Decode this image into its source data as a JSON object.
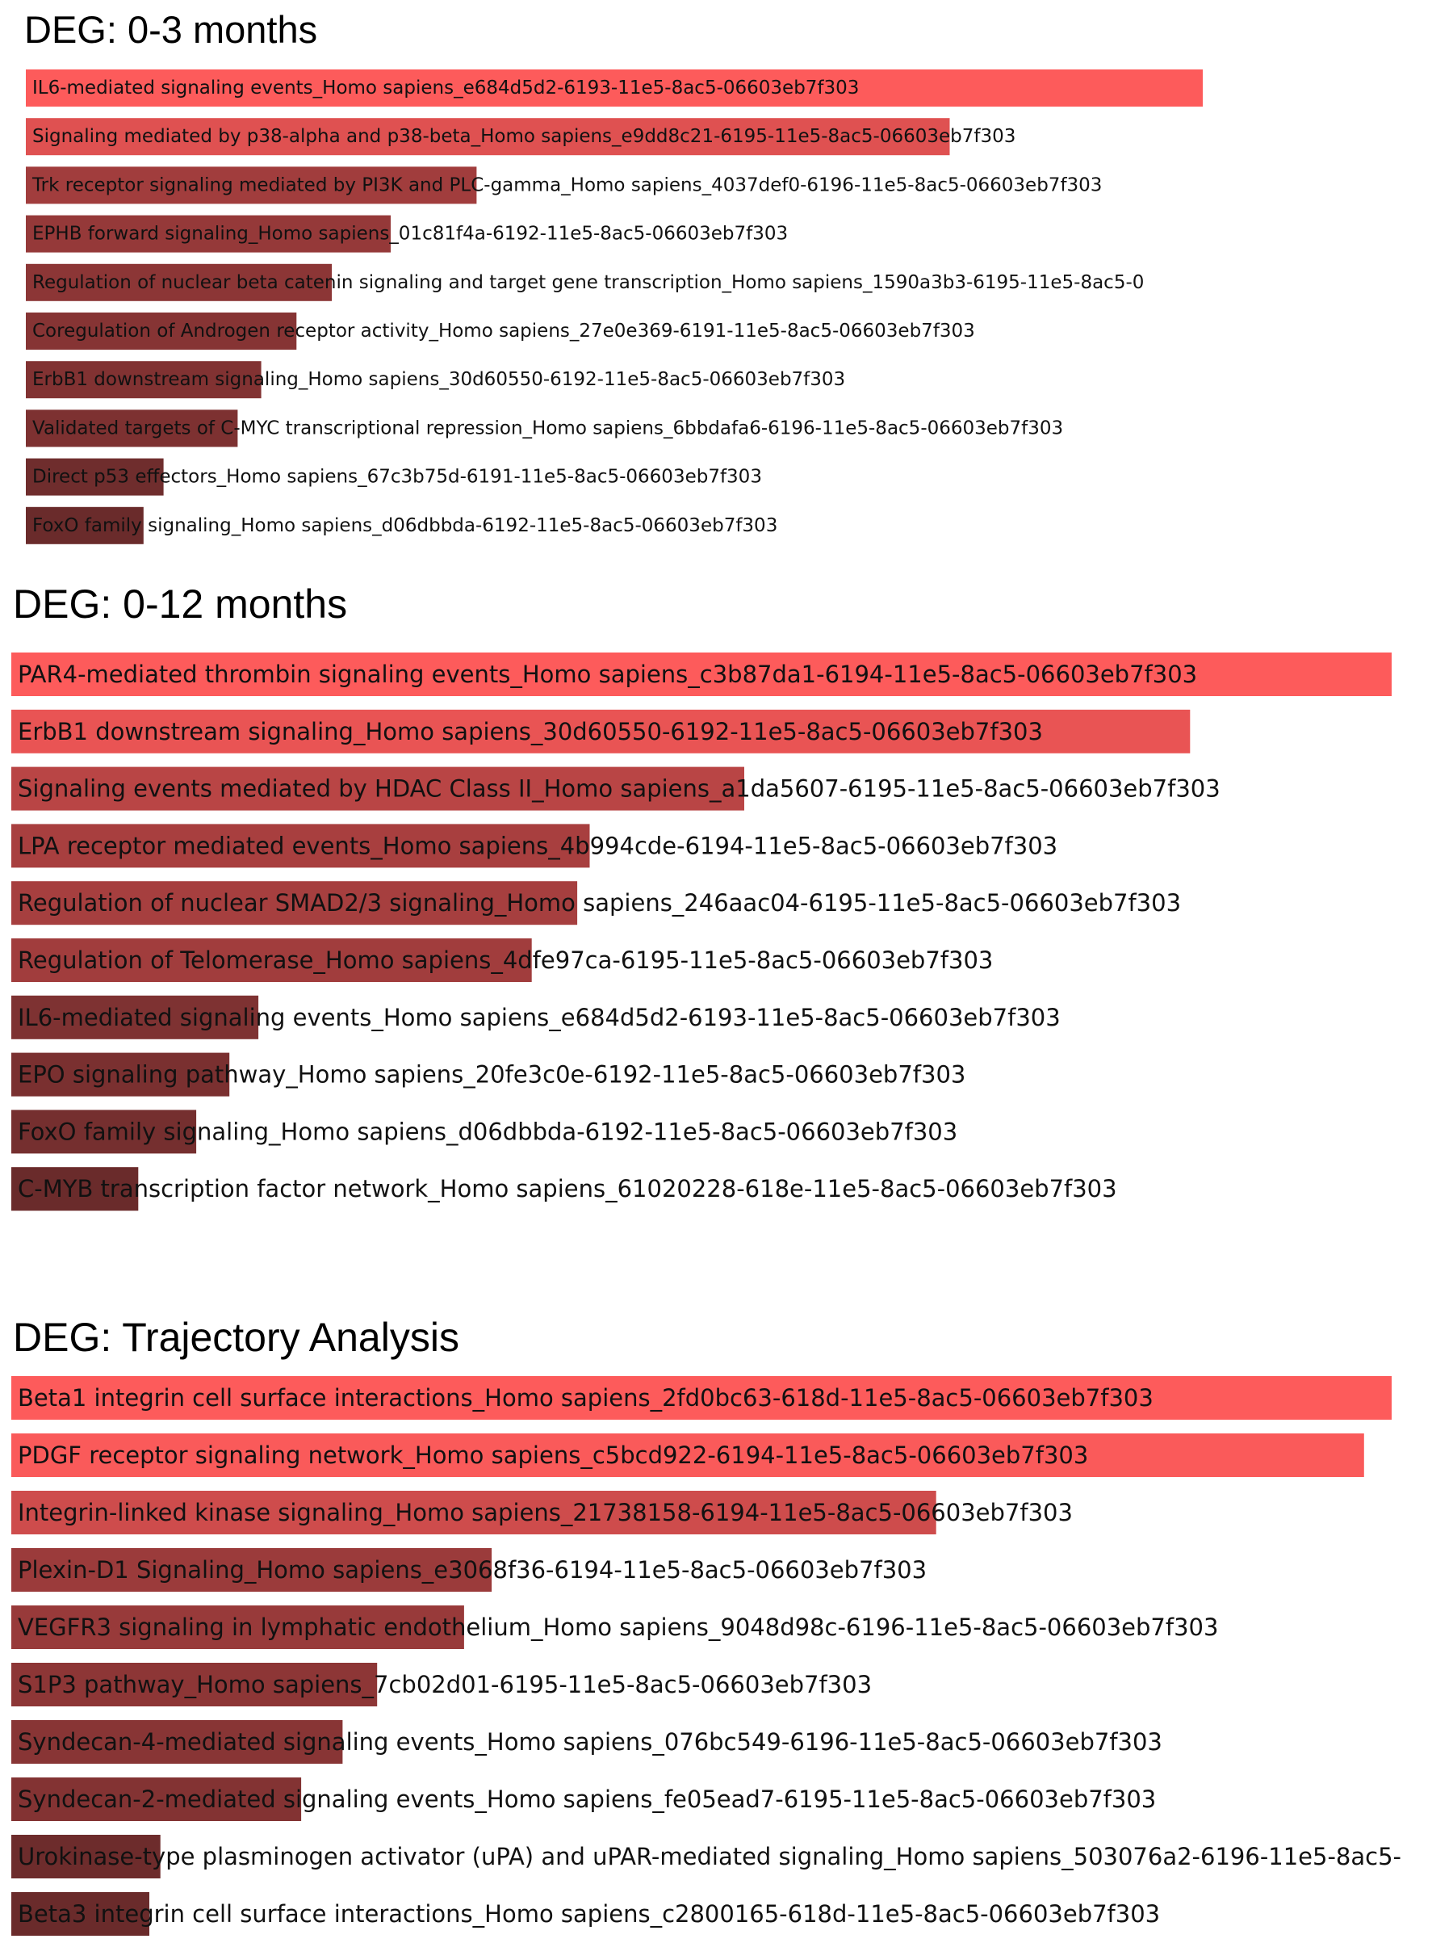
{
  "chart_data": [
    {
      "type": "bar",
      "title": "DEG: 0-3 months",
      "colors": {
        "high": "#fd5b5b",
        "low": "#6a2b2b"
      },
      "categories": [
        "IL6-mediated signaling events_Homo sapiens_e684d5d2-6193-11e5-8ac5-06603eb7f303",
        "Signaling mediated by p38-alpha and p38-beta_Homo sapiens_e9dd8c21-6195-11e5-8ac5-06603eb7f303",
        "Trk receptor signaling mediated by PI3K and PLC-gamma_Homo sapiens_4037def0-6196-11e5-8ac5-06603eb7f303",
        "EPHB forward signaling_Homo sapiens_01c81f4a-6192-11e5-8ac5-06603eb7f303",
        "Regulation of nuclear beta catenin signaling and target gene transcription_Homo sapiens_1590a3b3-6195-11e5-8ac5-0",
        "Coregulation of Androgen receptor activity_Homo sapiens_27e0e369-6191-11e5-8ac5-06603eb7f303",
        "ErbB1 downstream signaling_Homo sapiens_30d60550-6192-11e5-8ac5-06603eb7f303",
        "Validated targets of C-MYC transcriptional repression_Homo sapiens_6bbdafa6-6196-11e5-8ac5-06603eb7f303",
        "Direct p53 effectors_Homo sapiens_67c3b75d-6191-11e5-8ac5-06603eb7f303",
        "FoxO family signaling_Homo sapiens_d06dbbda-6192-11e5-8ac5-06603eb7f303"
      ],
      "values": [
        1.0,
        0.785,
        0.383,
        0.31,
        0.26,
        0.23,
        0.2,
        0.18,
        0.117,
        0.1
      ],
      "xlim": [
        0,
        1
      ]
    },
    {
      "type": "bar",
      "title": "DEG: 0-12 months",
      "colors": {
        "high": "#fd5b5b",
        "low": "#6a2b2b"
      },
      "categories": [
        "PAR4-mediated thrombin signaling events_Homo sapiens_c3b87da1-6194-11e5-8ac5-06603eb7f303",
        "ErbB1 downstream signaling_Homo sapiens_30d60550-6192-11e5-8ac5-06603eb7f303",
        "Signaling events mediated by HDAC Class II_Homo sapiens_a1da5607-6195-11e5-8ac5-06603eb7f303",
        "LPA receptor mediated events_Homo sapiens_4b994cde-6194-11e5-8ac5-06603eb7f303",
        "Regulation of nuclear SMAD2/3 signaling_Homo sapiens_246aac04-6195-11e5-8ac5-06603eb7f303",
        "Regulation of Telomerase_Homo sapiens_4dfe97ca-6195-11e5-8ac5-06603eb7f303",
        "IL6-mediated signaling events_Homo sapiens_e684d5d2-6193-11e5-8ac5-06603eb7f303",
        "EPO signaling pathway_Homo sapiens_20fe3c0e-6192-11e5-8ac5-06603eb7f303",
        "FoxO family signaling_Homo sapiens_d06dbbda-6192-11e5-8ac5-06603eb7f303",
        "C-MYB transcription factor network_Homo sapiens_61020228-618e-11e5-8ac5-06603eb7f303"
      ],
      "values": [
        1.0,
        0.854,
        0.531,
        0.419,
        0.41,
        0.377,
        0.179,
        0.158,
        0.134,
        0.092
      ],
      "xlim": [
        0,
        1
      ]
    },
    {
      "type": "bar",
      "title": "DEG: Trajectory Analysis",
      "colors": {
        "high": "#fd5b5b",
        "low": "#6a2b2b"
      },
      "categories": [
        "Beta1 integrin cell surface interactions_Homo sapiens_2fd0bc63-618d-11e5-8ac5-06603eb7f303",
        "PDGF receptor signaling network_Homo sapiens_c5bcd922-6194-11e5-8ac5-06603eb7f303",
        "Integrin-linked kinase signaling_Homo sapiens_21738158-6194-11e5-8ac5-06603eb7f303",
        "Plexin-D1 Signaling_Homo sapiens_e3068f36-6194-11e5-8ac5-06603eb7f303",
        "VEGFR3 signaling in lymphatic endothelium_Homo sapiens_9048d98c-6196-11e5-8ac5-06603eb7f303",
        "S1P3 pathway_Homo sapiens_7cb02d01-6195-11e5-8ac5-06603eb7f303",
        "Syndecan-4-mediated signaling events_Homo sapiens_076bc549-6196-11e5-8ac5-06603eb7f303",
        "Syndecan-2-mediated signaling events_Homo sapiens_fe05ead7-6195-11e5-8ac5-06603eb7f303",
        "Urokinase-type plasminogen activator (uPA) and uPAR-mediated signaling_Homo sapiens_503076a2-6196-11e5-8ac5-",
        "Beta3 integrin cell surface interactions_Homo sapiens_c2800165-618d-11e5-8ac5-06603eb7f303"
      ],
      "values": [
        1.0,
        0.98,
        0.67,
        0.348,
        0.328,
        0.265,
        0.24,
        0.21,
        0.108,
        0.1
      ],
      "xlim": [
        0,
        1
      ]
    }
  ]
}
